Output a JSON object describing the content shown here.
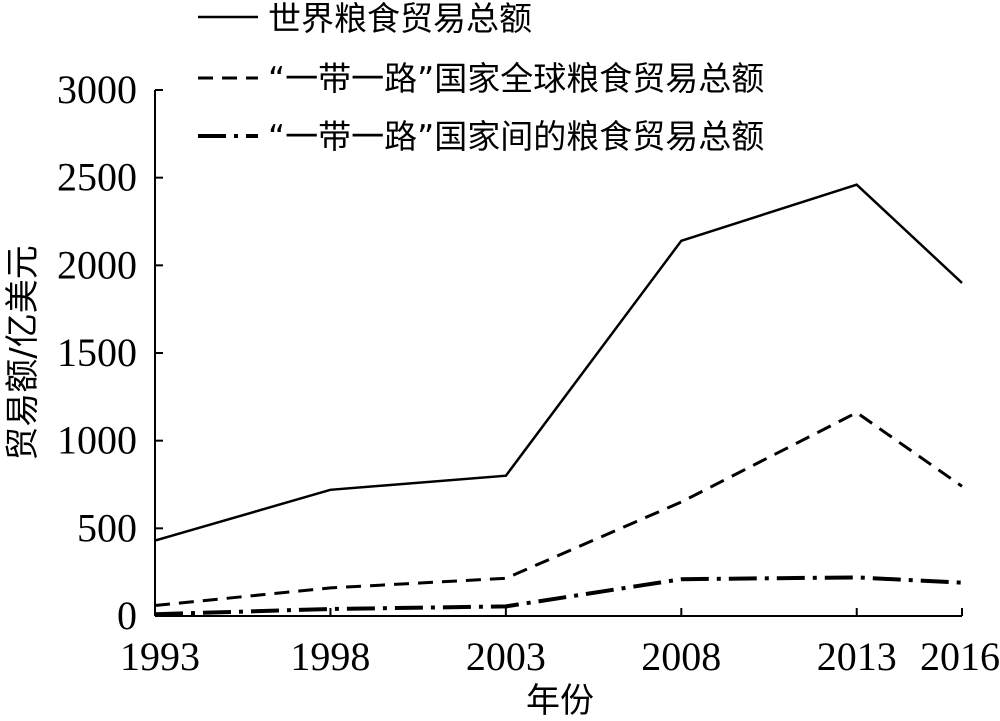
{
  "chart_data": {
    "type": "line",
    "xlabel": "年份",
    "ylabel": "贸易额/亿美元",
    "x": [
      "1993",
      "1998",
      "2003",
      "2008",
      "2013",
      "2016"
    ],
    "x_values": [
      1993,
      1998,
      2003,
      2008,
      2013,
      2016
    ],
    "ylim": [
      0,
      3000
    ],
    "yticks": [
      "0",
      "500",
      "1000",
      "1500",
      "2000",
      "2500",
      "3000"
    ],
    "ytick_values": [
      0,
      500,
      1000,
      1500,
      2000,
      2500,
      3000
    ],
    "grid": false,
    "legend_position": "top",
    "series": [
      {
        "name": "世界粮食贸易总额",
        "style": "solid",
        "values": [
          430,
          720,
          800,
          2140,
          2460,
          1900
        ]
      },
      {
        "name": "“一带一路”国家全球粮食贸易总额",
        "style": "dashed",
        "values": [
          60,
          160,
          215,
          650,
          1160,
          740
        ]
      },
      {
        "name": "“一带一路”国家间的粮食贸易总额",
        "style": "dash-dot",
        "values": [
          10,
          40,
          55,
          210,
          220,
          190
        ]
      }
    ],
    "colors": {
      "line": "#000000",
      "axis": "#000000",
      "background": "#ffffff"
    }
  }
}
